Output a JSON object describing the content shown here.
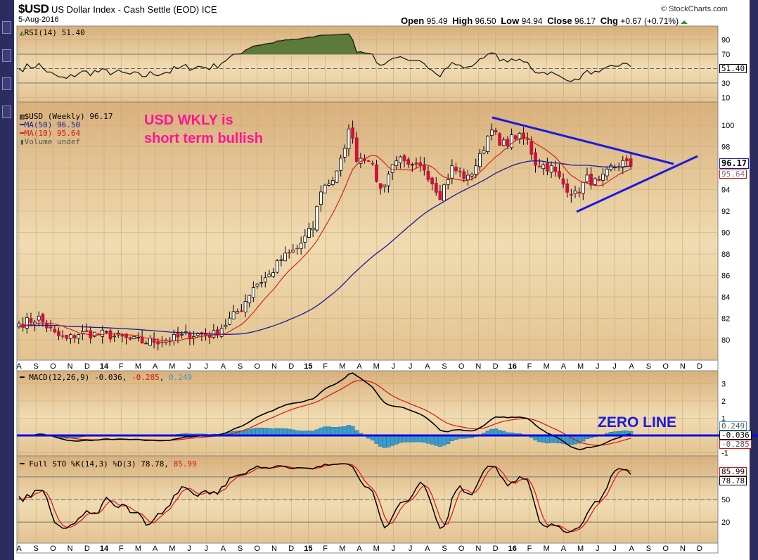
{
  "header": {
    "symbol": "$USD",
    "name": "US Dollar Index - Cash Settle (EOD) ICE",
    "date": "5-Aug-2016",
    "copyright": "© StockCharts.com",
    "ohlc": {
      "open_label": "Open",
      "open": "95.49",
      "high_label": "High",
      "high": "96.50",
      "low_label": "Low",
      "low": "94.94",
      "close_label": "Close",
      "close": "96.17",
      "chg_label": "Chg",
      "chg": "+0.67 (+0.71%)"
    }
  },
  "legends": {
    "rsi": "RSI(14) 51.40",
    "price": "$USD (Weekly) 96.17",
    "ma50": "MA(50) 96.50",
    "ma10": "MA(10) 95.64",
    "volume": "Volume undef",
    "macd_name": "MACD(12,26,9)",
    "macd_value": "-0.036",
    "macd_signal": "-0.285",
    "macd_hist": "0.249",
    "sto_name": "Full STO %K(14,3) %D(3)",
    "sto_k": "78.78",
    "sto_d": "85.99"
  },
  "annotations": {
    "note_line1": "USD WKLY is",
    "note_line2": "short term bullish",
    "zero_line": "ZERO LINE"
  },
  "tags": {
    "rsi": "51.40",
    "price": "96.17",
    "ma10": "95.64",
    "macd_hist": "0.249",
    "macd": "-0.036",
    "macd_signal": "-0.285",
    "sto_d": "85.99",
    "sto_k": "78.78"
  },
  "colors": {
    "up": "#ffffff",
    "down": "#d0103a",
    "ma50": "#1a1a9a",
    "ma10": "#d01818",
    "rsi_fill": "#5c7a3a",
    "hist": "#3d9bc8",
    "trend": "#1a1ae0",
    "annot": "#ff1493"
  },
  "chart_data": {
    "type": "candlestick",
    "title": "$USD US Dollar Index - Cash Settle (EOD) ICE",
    "period": "Weekly",
    "x_ticks": [
      "A",
      "S",
      "O",
      "N",
      "D",
      "14",
      "F",
      "M",
      "A",
      "M",
      "J",
      "J",
      "A",
      "S",
      "O",
      "N",
      "D",
      "15",
      "F",
      "M",
      "A",
      "M",
      "J",
      "J",
      "A",
      "S",
      "O",
      "N",
      "D",
      "16",
      "F",
      "M",
      "A",
      "M",
      "J",
      "J",
      "A",
      "S",
      "O",
      "N",
      "D"
    ],
    "price_axis": {
      "ticks": [
        80,
        82,
        84,
        86,
        88,
        90,
        92,
        94,
        96,
        98,
        100
      ],
      "range": [
        78.2,
        102.4
      ]
    },
    "rsi_axis": {
      "ticks": [
        90,
        70,
        30,
        10
      ]
    },
    "macd_axis": {
      "ticks": [
        3,
        2,
        1,
        -1
      ]
    },
    "sto_axis": {
      "ticks": [
        50,
        20
      ]
    },
    "close_keypoints": [
      [
        0,
        81.5
      ],
      [
        5,
        82
      ],
      [
        9,
        80.5
      ],
      [
        12,
        80
      ],
      [
        15,
        80.6
      ],
      [
        22,
        80.5
      ],
      [
        28,
        80
      ],
      [
        31,
        79.8
      ],
      [
        38,
        80
      ],
      [
        43,
        80.5
      ],
      [
        49,
        80.5
      ],
      [
        52,
        81.5
      ],
      [
        56,
        83
      ],
      [
        59,
        85
      ],
      [
        63,
        86
      ],
      [
        66,
        87.5
      ],
      [
        70,
        88.5
      ],
      [
        74,
        90.5
      ],
      [
        76,
        94
      ],
      [
        79,
        95
      ],
      [
        82,
        97.5
      ],
      [
        83,
        100
      ],
      [
        85,
        97
      ],
      [
        88,
        97
      ],
      [
        91,
        94
      ],
      [
        95,
        97
      ],
      [
        98,
        96
      ],
      [
        102,
        96
      ],
      [
        106,
        93.5
      ],
      [
        109,
        96
      ],
      [
        113,
        95
      ],
      [
        116,
        97
      ],
      [
        119,
        100
      ],
      [
        121,
        98
      ],
      [
        125,
        99
      ],
      [
        128,
        98.5
      ],
      [
        130,
        96.5
      ],
      [
        134,
        96
      ],
      [
        137,
        94.5
      ],
      [
        140,
        93.5
      ],
      [
        143,
        95
      ],
      [
        146,
        94.5
      ],
      [
        149,
        96
      ],
      [
        152,
        96.5
      ],
      [
        154,
        96.17
      ]
    ],
    "trendlines": [
      {
        "name": "upper",
        "from": [
          "Dec 2015",
          100.4
        ],
        "to": [
          "Oct 2016",
          96.1
        ]
      },
      {
        "name": "lower",
        "from": [
          "May 2016",
          92.0
        ],
        "to": [
          "Dec 2016",
          97.2
        ]
      }
    ]
  }
}
